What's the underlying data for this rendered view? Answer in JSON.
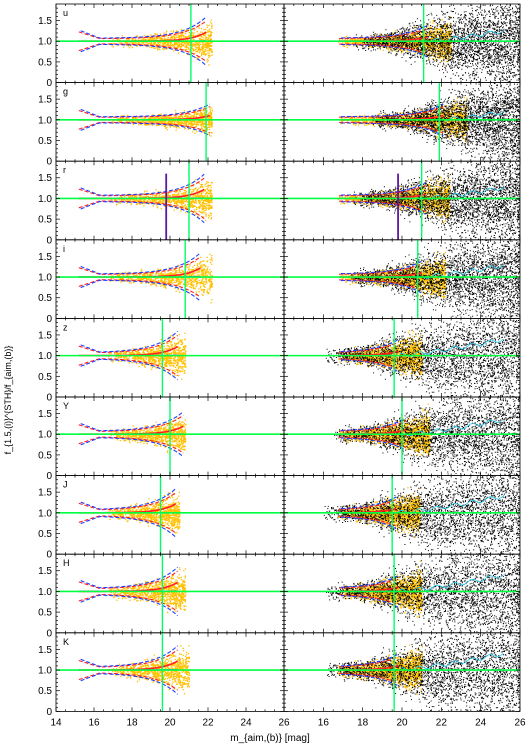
{
  "chart_data": {
    "type": "scatter",
    "ylabel": "f_{1.5,(i)}^{STH}/f_{aim,(b)}",
    "xlabel": "m_{aim,(b)} [mag]",
    "xlim": [
      14,
      26
    ],
    "ylim": [
      0,
      1.9
    ],
    "x_ticks": [
      "14",
      "16",
      "18",
      "20",
      "22",
      "24",
      "26"
    ],
    "y_ticks": [
      "0",
      "0.5",
      "1.0",
      "1.5"
    ],
    "reference_ratio": 1.0,
    "colors": {
      "bright_points": "#ffc000",
      "faint_points": "#000000",
      "median_red": "#ff2020",
      "median_blue": "#2040ff",
      "reference_line": "#00ff40",
      "limit_line": "#00ff66",
      "cyan_curve": "#22ccee",
      "purple_line": "#5a1aa0"
    },
    "bands": [
      {
        "name": "u",
        "limit_mag": 21.1,
        "left_xmax": 22.2
      },
      {
        "name": "g",
        "limit_mag": 21.9,
        "left_xmax": 22.2
      },
      {
        "name": "r",
        "limit_mag": 21.0,
        "left_xmax": 22.2,
        "purple_mag": 19.8
      },
      {
        "name": "i",
        "limit_mag": 20.8,
        "left_xmax": 22.2
      },
      {
        "name": "z",
        "limit_mag": 19.6,
        "left_xmax": 20.8
      },
      {
        "name": "Y",
        "limit_mag": 20.0,
        "left_xmax": 20.8
      },
      {
        "name": "J",
        "limit_mag": 19.5,
        "left_xmax": 20.5
      },
      {
        "name": "H",
        "limit_mag": 19.6,
        "left_xmax": 20.8
      },
      {
        "name": "K",
        "limit_mag": 19.6,
        "left_xmax": 21.0
      }
    ]
  }
}
